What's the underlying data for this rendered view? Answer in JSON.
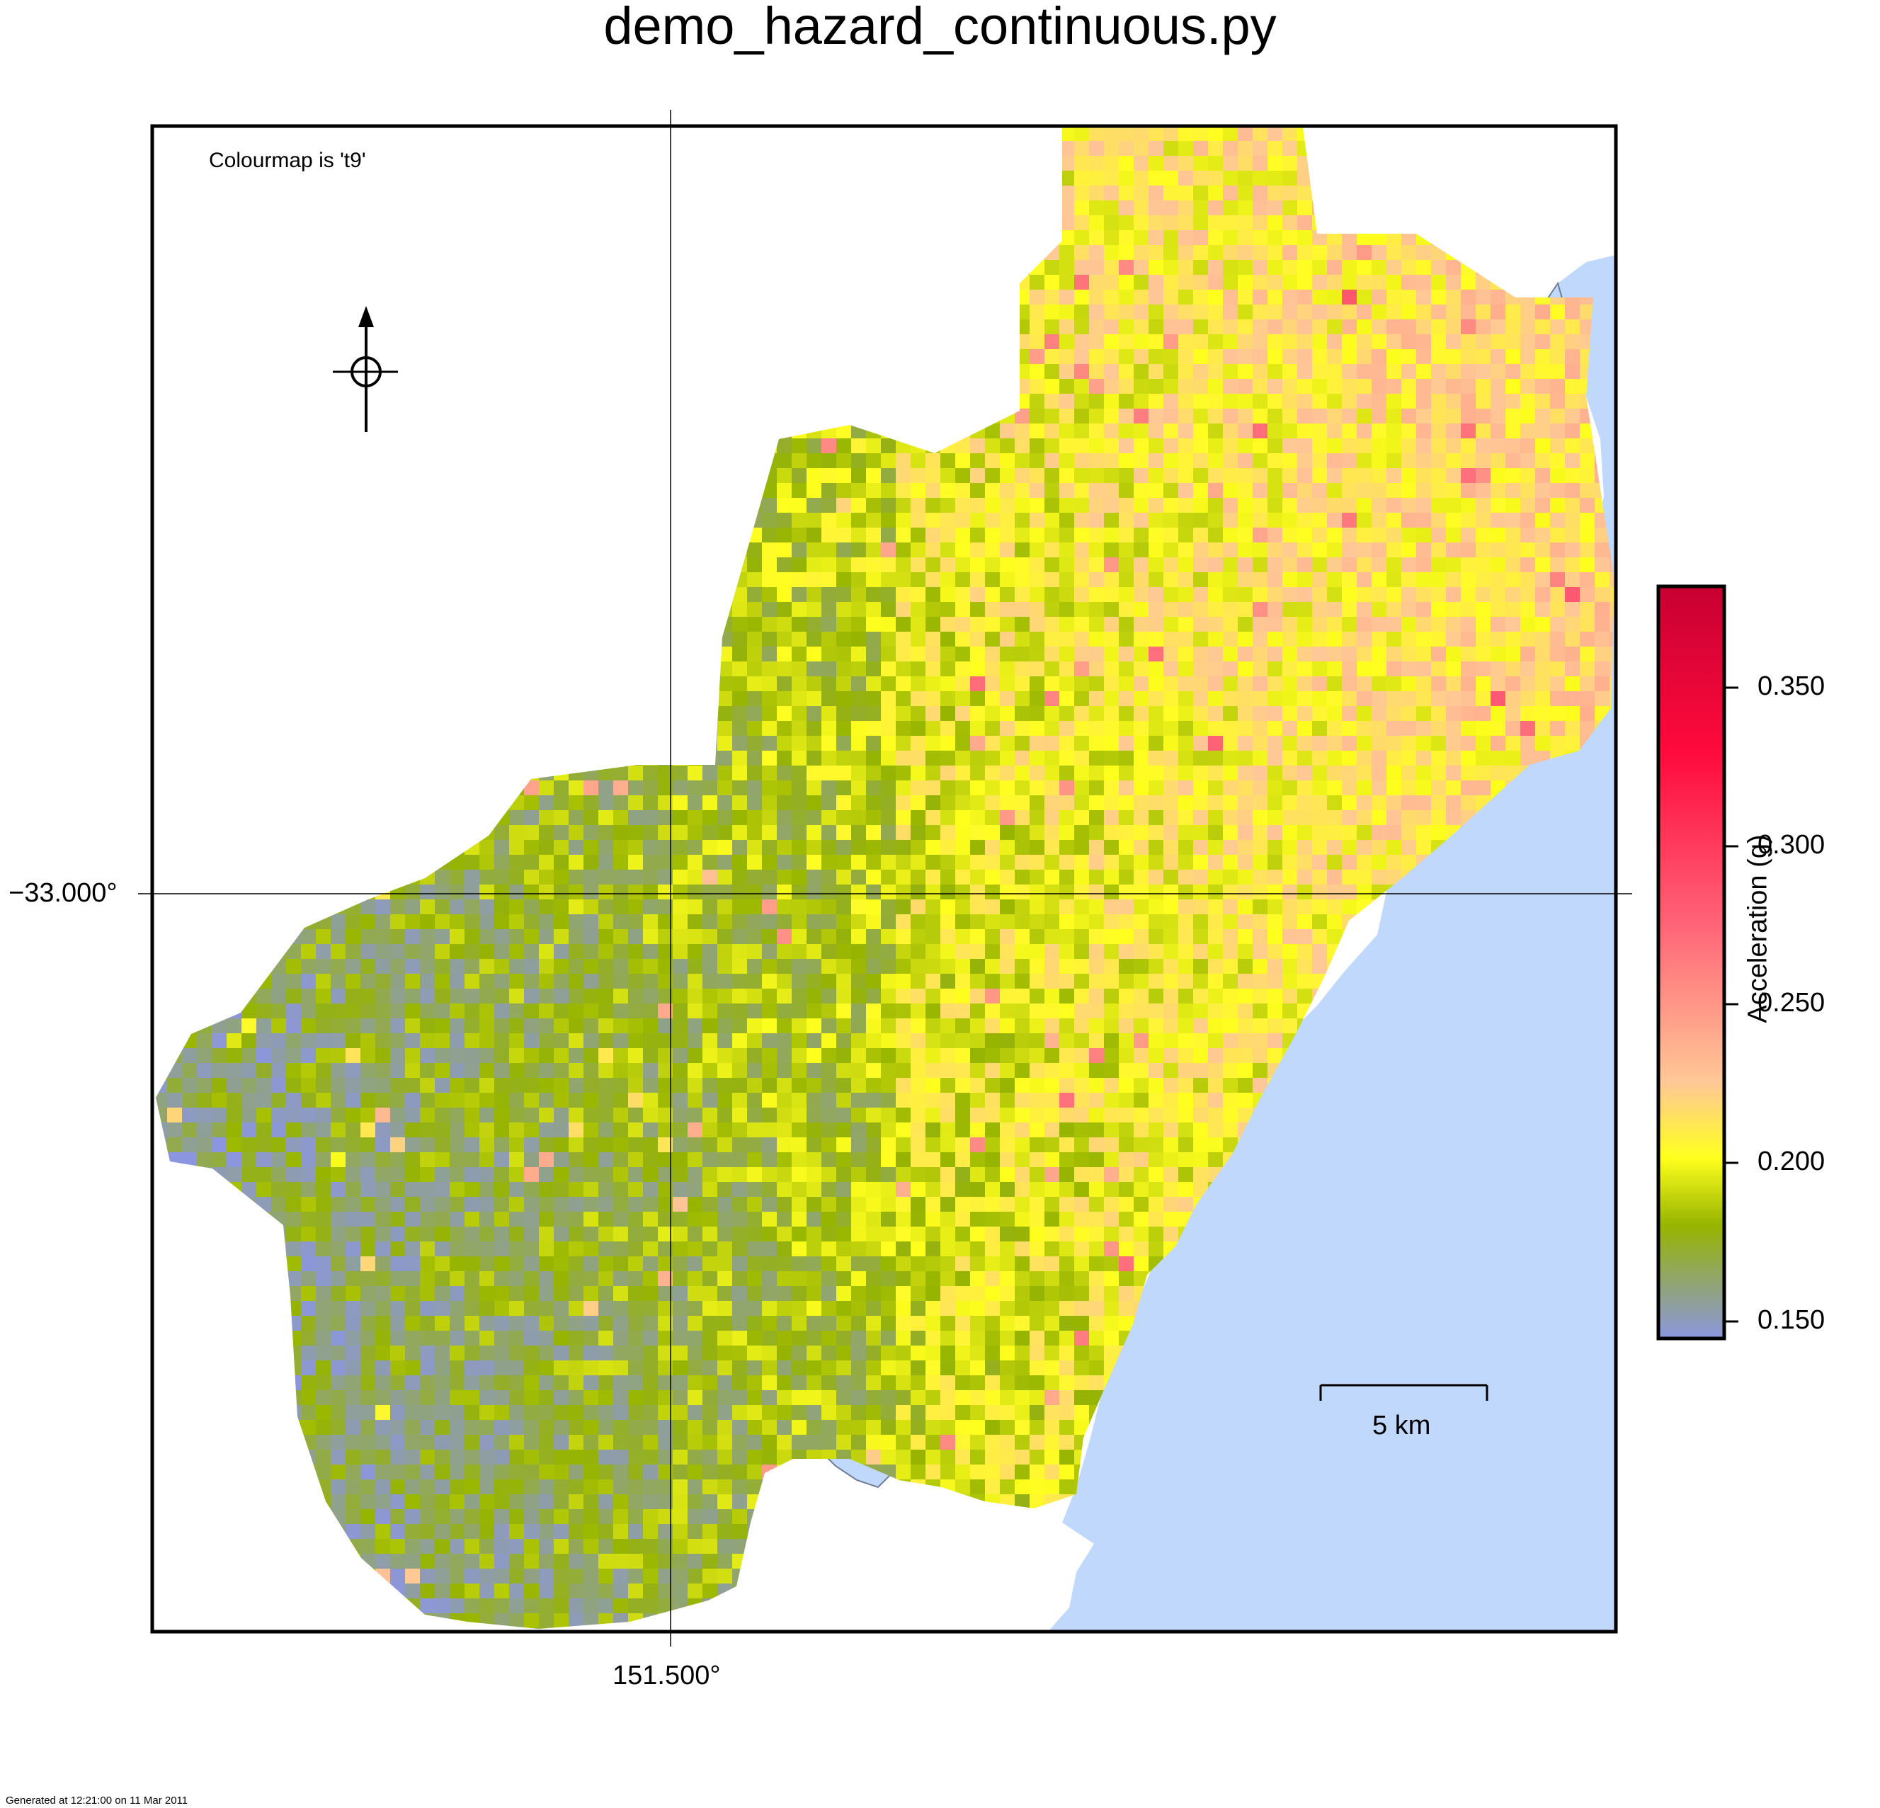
{
  "title": "demo_hazard_continuous.py",
  "note": "Colourmap is 't9'",
  "footer": "Generated at 12:21:00 on 11 Mar 2011",
  "axes": {
    "longitude_label": "151.500°",
    "latitude_label": "−33.000°"
  },
  "scalebar": {
    "label": "5 km"
  },
  "north_arrow": {
    "icon": "north-arrow-icon"
  },
  "colorbar": {
    "label": "Acceleration (g)",
    "ticks": [
      "0.150",
      "0.200",
      "0.250",
      "0.300",
      "0.350"
    ],
    "range": [
      0.143,
      0.38
    ],
    "colormap": "t9",
    "stops": [
      "#8c96e0",
      "#96b400",
      "#ffff1e",
      "#ffc896",
      "#ff6478",
      "#ff0a3c",
      "#c80032"
    ]
  },
  "colors": {
    "water": "#c0d8fc",
    "frame": "#000000"
  }
}
